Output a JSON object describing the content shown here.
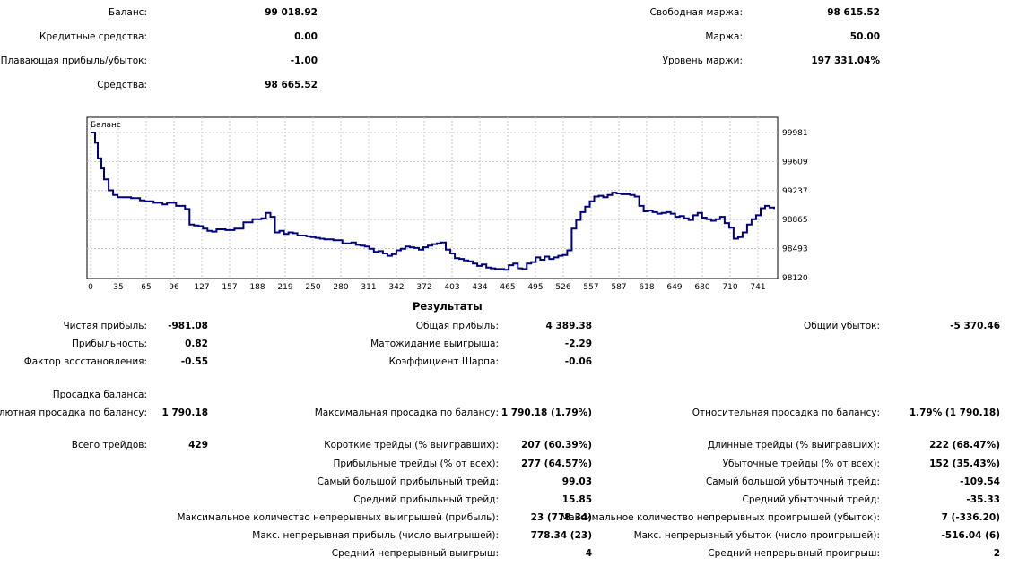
{
  "summary": {
    "balance": {
      "label": "Баланс:",
      "value": "99 018.92"
    },
    "credit": {
      "label": "Кредитные средства:",
      "value": "0.00"
    },
    "floating": {
      "label": "Плавающая прибыль/убыток:",
      "value": "-1.00"
    },
    "equity": {
      "label": "Средства:",
      "value": "98 665.52"
    },
    "free_margin": {
      "label": "Свободная маржа:",
      "value": "98 615.52"
    },
    "margin": {
      "label": "Маржа:",
      "value": "50.00"
    },
    "margin_level": {
      "label": "Уровень маржи:",
      "value": "197 331.04%"
    }
  },
  "chart_data": {
    "type": "line",
    "title": "Баланс",
    "x_ticks": [
      "0",
      "35",
      "65",
      "96",
      "127",
      "157",
      "188",
      "219",
      "250",
      "280",
      "311",
      "342",
      "372",
      "403",
      "434",
      "465",
      "495",
      "526",
      "557",
      "587",
      "618",
      "649",
      "680",
      "710",
      "741"
    ],
    "y_ticks": [
      "99981",
      "99609",
      "99237",
      "98865",
      "98493",
      "98120"
    ],
    "ylim": [
      98120,
      99981
    ],
    "xlim": [
      0,
      760
    ],
    "grid": true,
    "line_color": "#00007f",
    "series": [
      {
        "x": [
          0,
          5,
          8,
          12,
          15,
          20,
          25,
          30,
          45,
          55,
          60,
          70,
          80,
          85,
          95,
          105,
          110,
          115,
          120,
          125,
          130,
          135,
          140,
          150,
          160,
          170,
          180,
          190,
          195,
          200,
          205,
          210,
          215,
          220,
          225,
          230,
          235,
          240,
          245,
          250,
          255,
          260,
          270,
          280,
          290,
          295,
          300,
          305,
          310,
          315,
          320,
          325,
          330,
          335,
          340,
          345,
          350,
          355,
          360,
          365,
          370,
          375,
          380,
          385,
          390,
          395,
          400,
          405,
          410,
          415,
          420,
          425,
          430,
          435,
          440,
          445,
          450,
          455,
          460,
          465,
          470,
          475,
          480,
          485,
          490,
          495,
          500,
          505,
          510,
          515,
          520,
          525,
          530,
          535,
          540,
          545,
          550,
          555,
          560,
          565,
          570,
          575,
          580,
          585,
          590,
          595,
          600,
          605,
          610,
          615,
          620,
          625,
          630,
          635,
          640,
          645,
          650,
          655,
          660,
          665,
          670,
          675,
          680,
          685,
          690,
          695,
          700,
          705,
          710,
          715,
          720,
          725,
          730,
          735,
          740,
          745,
          750,
          755,
          760
        ],
        "values": [
          99981,
          99850,
          99650,
          99520,
          99380,
          99240,
          99180,
          99150,
          99140,
          99110,
          99100,
          99080,
          99060,
          99080,
          99040,
          99000,
          98800,
          98790,
          98780,
          98750,
          98720,
          98710,
          98740,
          98730,
          98750,
          98830,
          98870,
          98880,
          98950,
          98900,
          98700,
          98720,
          98680,
          98700,
          98690,
          98660,
          98660,
          98650,
          98640,
          98630,
          98620,
          98610,
          98600,
          98560,
          98570,
          98540,
          98530,
          98520,
          98490,
          98450,
          98460,
          98430,
          98400,
          98420,
          98470,
          98490,
          98520,
          98510,
          98500,
          98480,
          98510,
          98530,
          98550,
          98560,
          98570,
          98480,
          98430,
          98370,
          98360,
          98340,
          98330,
          98300,
          98270,
          98290,
          98250,
          98240,
          98230,
          98230,
          98220,
          98280,
          98300,
          98240,
          98230,
          98300,
          98320,
          98380,
          98350,
          98390,
          98360,
          98380,
          98400,
          98410,
          98470,
          98750,
          98860,
          98960,
          99030,
          99100,
          99160,
          99170,
          99150,
          99180,
          99210,
          99200,
          99190,
          99190,
          99180,
          99160,
          99040,
          98970,
          98980,
          98960,
          98940,
          98950,
          98960,
          98940,
          98900,
          98910,
          98880,
          98860,
          98920,
          98950,
          98890,
          98870,
          98850,
          98870,
          98900,
          98820,
          98760,
          98620,
          98640,
          98700,
          98800,
          98870,
          98920,
          99010,
          99040,
          99020,
          99000
        ]
      }
    ]
  },
  "results": {
    "title": "Результаты",
    "net_profit": {
      "label": "Чистая прибыль:",
      "value": "-981.08"
    },
    "profitability": {
      "label": "Прибыльность:",
      "value": "0.82"
    },
    "recovery_factor": {
      "label": "Фактор восстановления:",
      "value": "-0.55"
    },
    "gross_profit": {
      "label": "Общая прибыль:",
      "value": "4 389.38"
    },
    "expected_payoff": {
      "label": "Матожидание выигрыша:",
      "value": "-2.29"
    },
    "sharpe": {
      "label": "Коэффициент Шарпа:",
      "value": "-0.06"
    },
    "gross_loss": {
      "label": "Общий убыток:",
      "value": "-5 370.46"
    },
    "drawdown_header": {
      "label": "Просадка баланса:"
    },
    "abs_drawdown": {
      "label": "Абсолютная просадка по балансу:",
      "value": "1 790.18"
    },
    "max_drawdown": {
      "label": "Максимальная просадка по балансу:",
      "value": "1 790.18 (1.79%)"
    },
    "rel_drawdown": {
      "label": "Относительная просадка по балансу:",
      "value": "1.79% (1 790.18)"
    },
    "total_trades": {
      "label": "Всего трейдов:",
      "value": "429"
    },
    "short_trades": {
      "label": "Короткие трейды (% выигравших):",
      "value": "207 (60.39%)"
    },
    "long_trades": {
      "label": "Длинные трейды (% выигравших):",
      "value": "222 (68.47%)"
    },
    "profit_trades": {
      "label": "Прибыльные трейды (% от всех):",
      "value": "277 (64.57%)"
    },
    "loss_trades": {
      "label": "Убыточные трейды (% от всех):",
      "value": "152 (35.43%)"
    },
    "largest_profit": {
      "label": "Самый большой прибыльный трейд:",
      "value": "99.03"
    },
    "largest_loss": {
      "label": "Самый большой убыточный трейд:",
      "value": "-109.54"
    },
    "avg_profit": {
      "label": "Средний прибыльный трейд:",
      "value": "15.85"
    },
    "avg_loss": {
      "label": "Средний убыточный трейд:",
      "value": "-35.33"
    },
    "max_consec_wins": {
      "label": "Максимальное количество непрерывных выигрышей (прибыль):",
      "value": "23 (778.34)"
    },
    "max_consec_losses": {
      "label": "Максимальное количество непрерывных проигрышей (убыток):",
      "value": "7 (-336.20)"
    },
    "max_consec_profit": {
      "label": "Макс. непрерывная прибыль (число выигрышей):",
      "value": "778.34 (23)"
    },
    "max_consec_loss": {
      "label": "Макс. непрерывный убыток (число проигрышей):",
      "value": "-516.04 (6)"
    },
    "avg_consec_wins": {
      "label": "Средний непрерывный выигрыш:",
      "value": "4"
    },
    "avg_consec_losses": {
      "label": "Средний непрерывный проигрыш:",
      "value": "2"
    }
  }
}
